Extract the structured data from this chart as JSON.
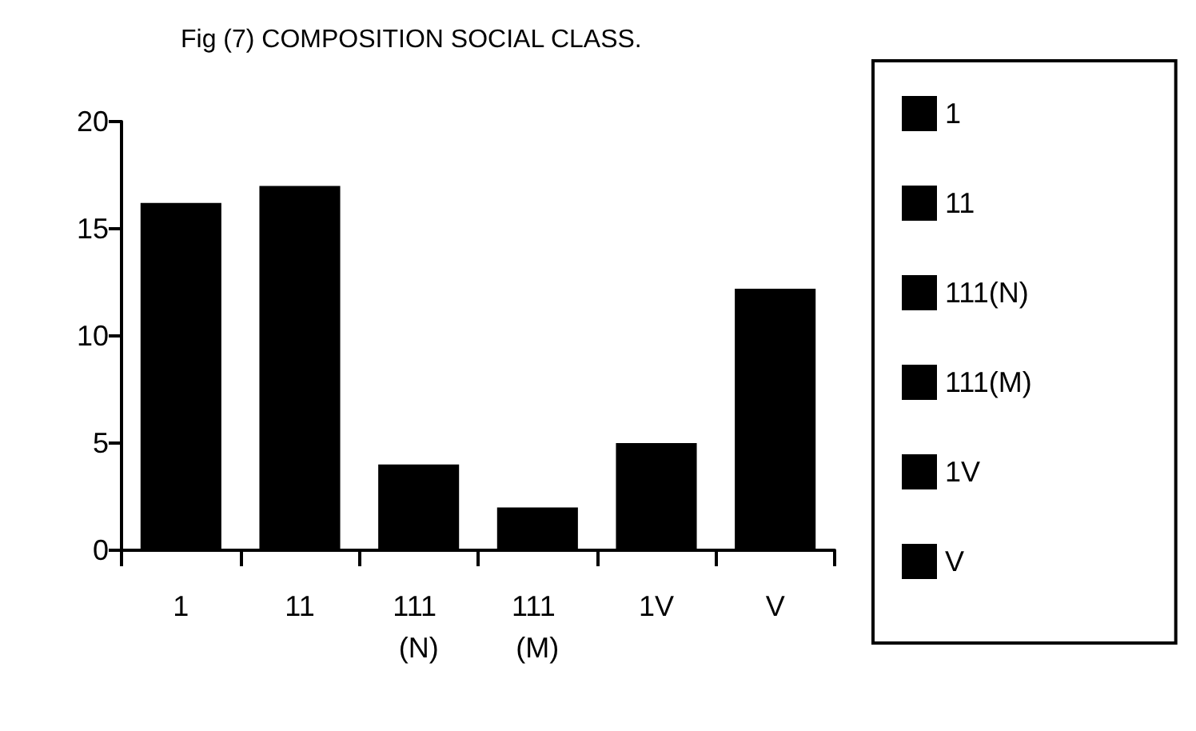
{
  "chart_data": {
    "type": "bar",
    "title": "Fig (7) COMPOSITION SOCIAL CLASS.",
    "categories": [
      "1",
      "11",
      "111 (N)",
      "111 (M)",
      "1V",
      "V"
    ],
    "series": [
      {
        "name": "1",
        "color": "#000000",
        "values": [
          16.2,
          null,
          null,
          null,
          null,
          null
        ]
      },
      {
        "name": "11",
        "color": "#000000",
        "values": [
          null,
          17,
          null,
          null,
          null,
          null
        ]
      },
      {
        "name": "111(N)",
        "color": "#000000",
        "values": [
          null,
          null,
          4,
          null,
          null,
          null
        ]
      },
      {
        "name": "111(M)",
        "color": "#000000",
        "values": [
          null,
          null,
          null,
          2,
          null,
          null
        ]
      },
      {
        "name": "1V",
        "color": "#000000",
        "values": [
          null,
          null,
          null,
          null,
          5,
          null
        ]
      },
      {
        "name": "V",
        "color": "#000000",
        "values": [
          null,
          null,
          null,
          null,
          null,
          12.2
        ]
      }
    ],
    "ylim": [
      0,
      20
    ],
    "yticks": [
      0,
      5,
      10,
      15,
      20
    ],
    "grid": false,
    "legend": "right"
  }
}
